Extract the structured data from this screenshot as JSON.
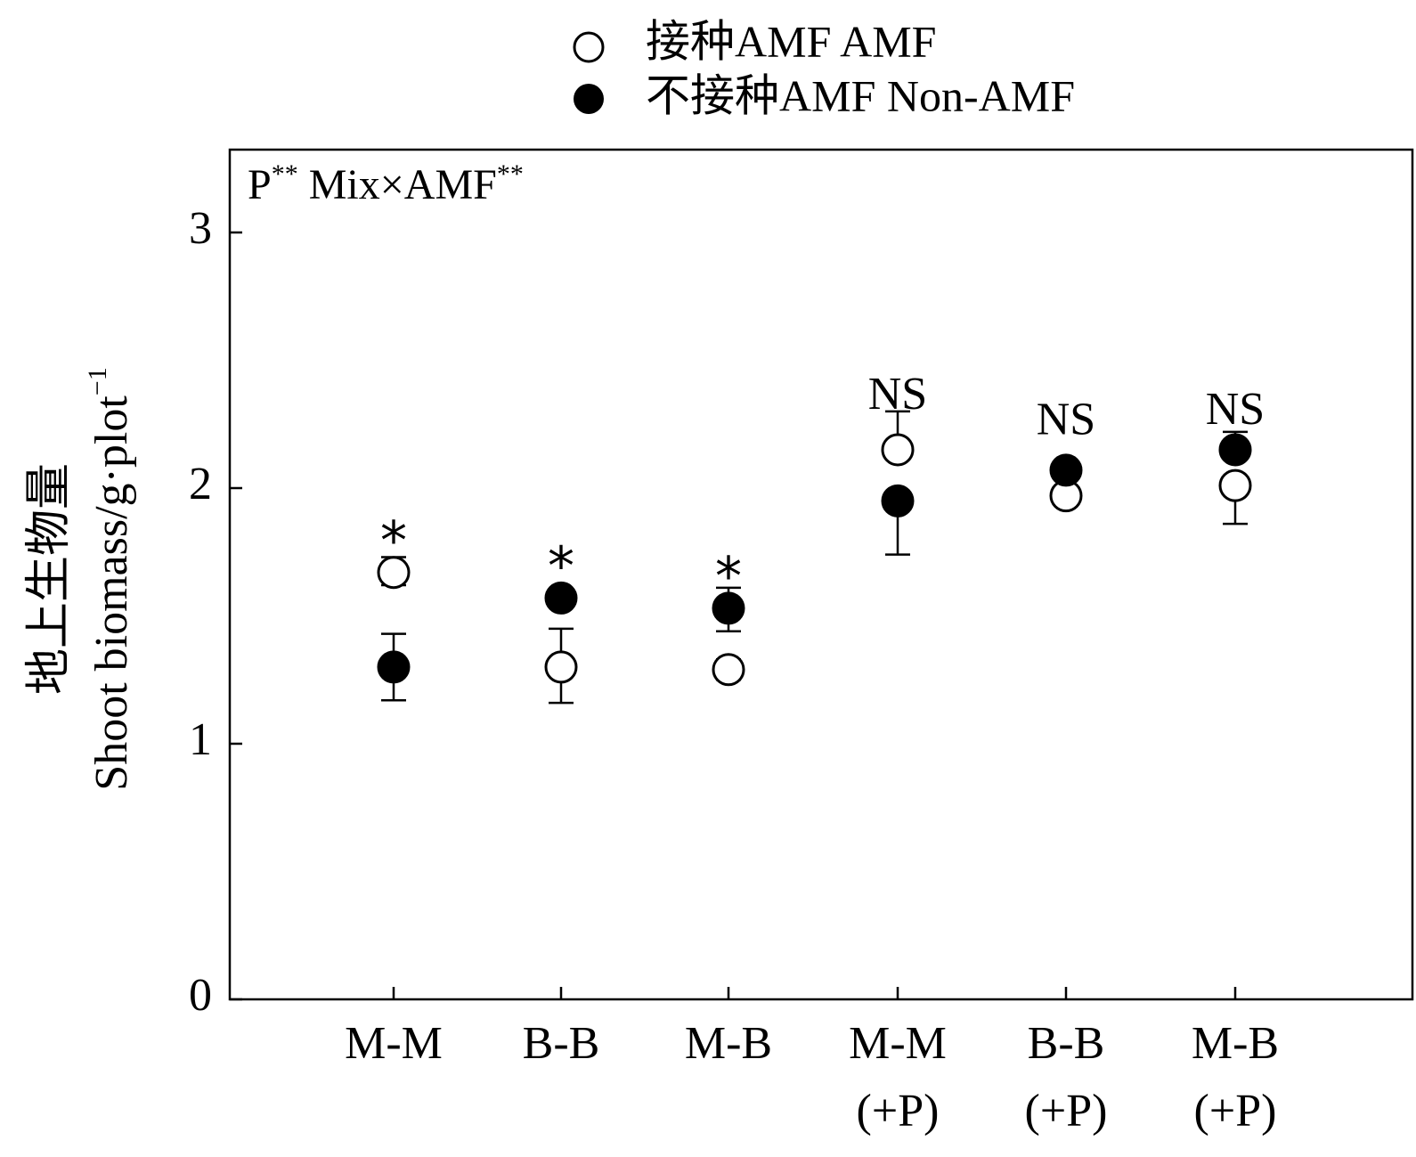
{
  "chart_data": {
    "type": "scatter",
    "annotation": {
      "prefix": "P",
      "prefix_sup": "**",
      "middle": " Mix×AMF",
      "suffix_sup": "**"
    },
    "ylabel_cn": "地上生物量",
    "ylabel_en": "Shoot biomass/g·plot",
    "ylabel_sup": "−1",
    "ylim": [
      0,
      3.5
    ],
    "yticks": [
      0,
      1,
      2,
      3
    ],
    "ytick_labels": [
      "0",
      "1",
      "2",
      "3"
    ],
    "categories": [
      {
        "line1": "M-M",
        "line2": ""
      },
      {
        "line1": "B-B",
        "line2": ""
      },
      {
        "line1": "M-B",
        "line2": ""
      },
      {
        "line1": "M-M",
        "line2": "(+P)"
      },
      {
        "line1": "B-B",
        "line2": "(+P)"
      },
      {
        "line1": "M-B",
        "line2": "(+P)"
      }
    ],
    "series": [
      {
        "name": "接种AMF AMF",
        "marker": "open-circle",
        "values": [
          1.67,
          1.3,
          1.29,
          2.15,
          1.97,
          2.01
        ],
        "err_upper": [
          1.73,
          1.45,
          1.33,
          2.3,
          1.97,
          2.01
        ],
        "err_lower": [
          1.62,
          1.16,
          1.25,
          2.15,
          1.97,
          1.86
        ]
      },
      {
        "name": "不接种AMF Non-AMF",
        "marker": "filled-circle",
        "values": [
          1.3,
          1.57,
          1.53,
          1.95,
          2.07,
          2.15
        ],
        "err_upper": [
          1.43,
          1.57,
          1.61,
          1.95,
          2.07,
          2.22
        ],
        "err_lower": [
          1.17,
          1.57,
          1.44,
          1.74,
          2.07,
          2.15
        ]
      }
    ],
    "significance": [
      "*",
      "*",
      "*",
      "NS",
      "NS",
      "NS"
    ],
    "significance_y": [
      1.8,
      1.7,
      1.66,
      2.38,
      2.28,
      2.32
    ],
    "legend_position": "top-center",
    "grid": false
  }
}
